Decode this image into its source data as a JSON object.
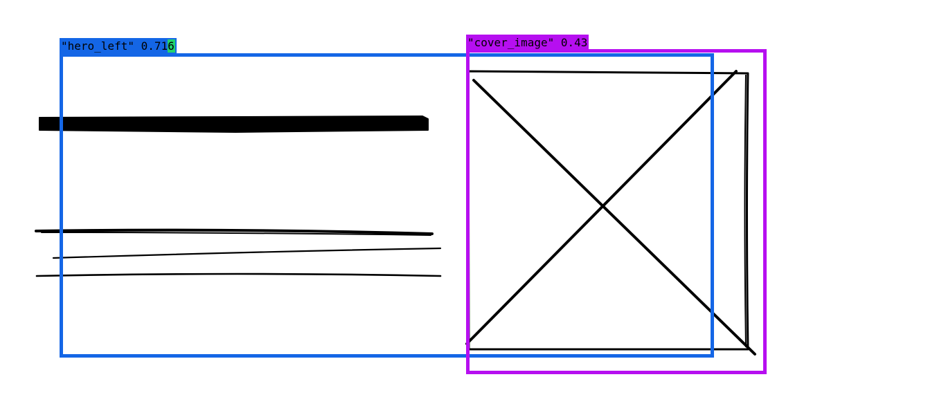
{
  "detections": [
    {
      "id": "hero",
      "name": "hero_left",
      "score_text": "0.71",
      "score_tail": "6",
      "box_color": "#1466e6",
      "label_bg": "#1466e6",
      "tail_bg": "#22d36e"
    },
    {
      "id": "cover",
      "name": "cover_image",
      "score_text": "0.43",
      "box_color": "#b60ff0",
      "label_bg": "#b60ff0"
    }
  ],
  "sketch": {
    "stroke_color": "#000000",
    "elements": [
      "heading-scribble",
      "text-line-1",
      "text-line-2",
      "text-line-3",
      "image-placeholder-frame",
      "image-placeholder-cross"
    ]
  }
}
